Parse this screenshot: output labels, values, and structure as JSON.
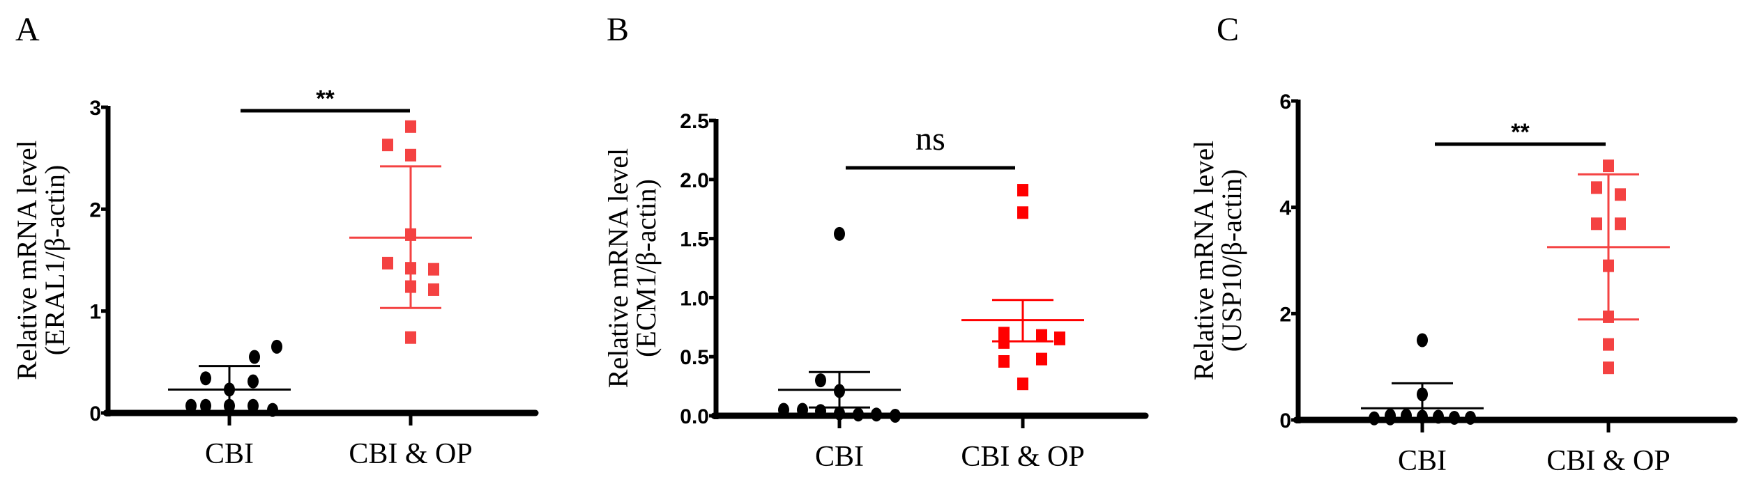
{
  "chart_data": [
    {
      "type": "scatter",
      "panel_label": "A",
      "ylabel_line1": "Relative mRNA level",
      "ylabel_line2": "(ERAL1/β-actin)",
      "categories": [
        "CBI",
        "CBI & OP"
      ],
      "ylim": [
        0,
        3
      ],
      "yticks": [
        "0",
        "1",
        "2",
        "3"
      ],
      "grid": false,
      "significance": "**",
      "series": [
        {
          "values": [
            0.65,
            0.55,
            0.34,
            0.31,
            0.23,
            0.07,
            0.07,
            0.07,
            0.07,
            0.03
          ],
          "mean": 0.23,
          "sd_upper": 0.46,
          "sd_lower": 0.02,
          "marker": "circle",
          "color": "#000000"
        },
        {
          "values": [
            2.81,
            2.63,
            2.53,
            1.75,
            1.47,
            1.42,
            1.41,
            1.24,
            1.21,
            0.74
          ],
          "mean": 1.72,
          "sd_upper": 2.42,
          "sd_lower": 1.03,
          "marker": "square",
          "color": "#F44242"
        }
      ]
    },
    {
      "type": "scatter",
      "panel_label": "B",
      "ylabel_line1": "Relative mRNA level",
      "ylabel_line2": "(ECM1/β-actin)",
      "categories": [
        "CBI",
        "CBI & OP"
      ],
      "ylim": [
        0,
        2.5
      ],
      "yticks": [
        "0.0",
        "0.5",
        "1.0",
        "1.5",
        "2.0",
        "2.5"
      ],
      "grid": false,
      "significance": "ns",
      "series": [
        {
          "values": [
            1.54,
            0.3,
            0.21,
            0.05,
            0.05,
            0.04,
            0.02,
            0.01,
            0.01,
            0.0
          ],
          "mean": 0.22,
          "sd_upper": 0.37,
          "sd_lower": 0.07,
          "marker": "circle",
          "color": "#000000"
        },
        {
          "values": [
            1.91,
            1.72,
            0.7,
            0.68,
            0.66,
            0.65,
            0.62,
            0.48,
            0.46,
            0.27
          ],
          "mean": 0.81,
          "sd_upper": 0.98,
          "sd_lower": 0.63,
          "marker": "square",
          "color": "#FF0000"
        }
      ]
    },
    {
      "type": "scatter",
      "panel_label": "C",
      "ylabel_line1": "Relative mRNA level",
      "ylabel_line2": "(USP10/β-actin)",
      "categories": [
        "CBI",
        "CBI & OP"
      ],
      "ylim": [
        0,
        6
      ],
      "yticks": [
        "0",
        "2",
        "4",
        "6"
      ],
      "grid": false,
      "significance": "**",
      "series": [
        {
          "values": [
            1.5,
            0.48,
            0.08,
            0.08,
            0.06,
            0.06,
            0.04,
            0.04,
            0.03,
            0.03
          ],
          "mean": 0.22,
          "sd_upper": 0.69,
          "sd_lower": 0.0,
          "marker": "circle",
          "color": "#000000"
        },
        {
          "values": [
            4.78,
            4.37,
            4.37,
            4.24,
            3.69,
            3.69,
            2.9,
            1.94,
            1.42,
            0.98
          ],
          "mean": 3.25,
          "sd_upper": 4.62,
          "sd_lower": 1.89,
          "marker": "square",
          "color": "#F44242"
        }
      ]
    }
  ]
}
